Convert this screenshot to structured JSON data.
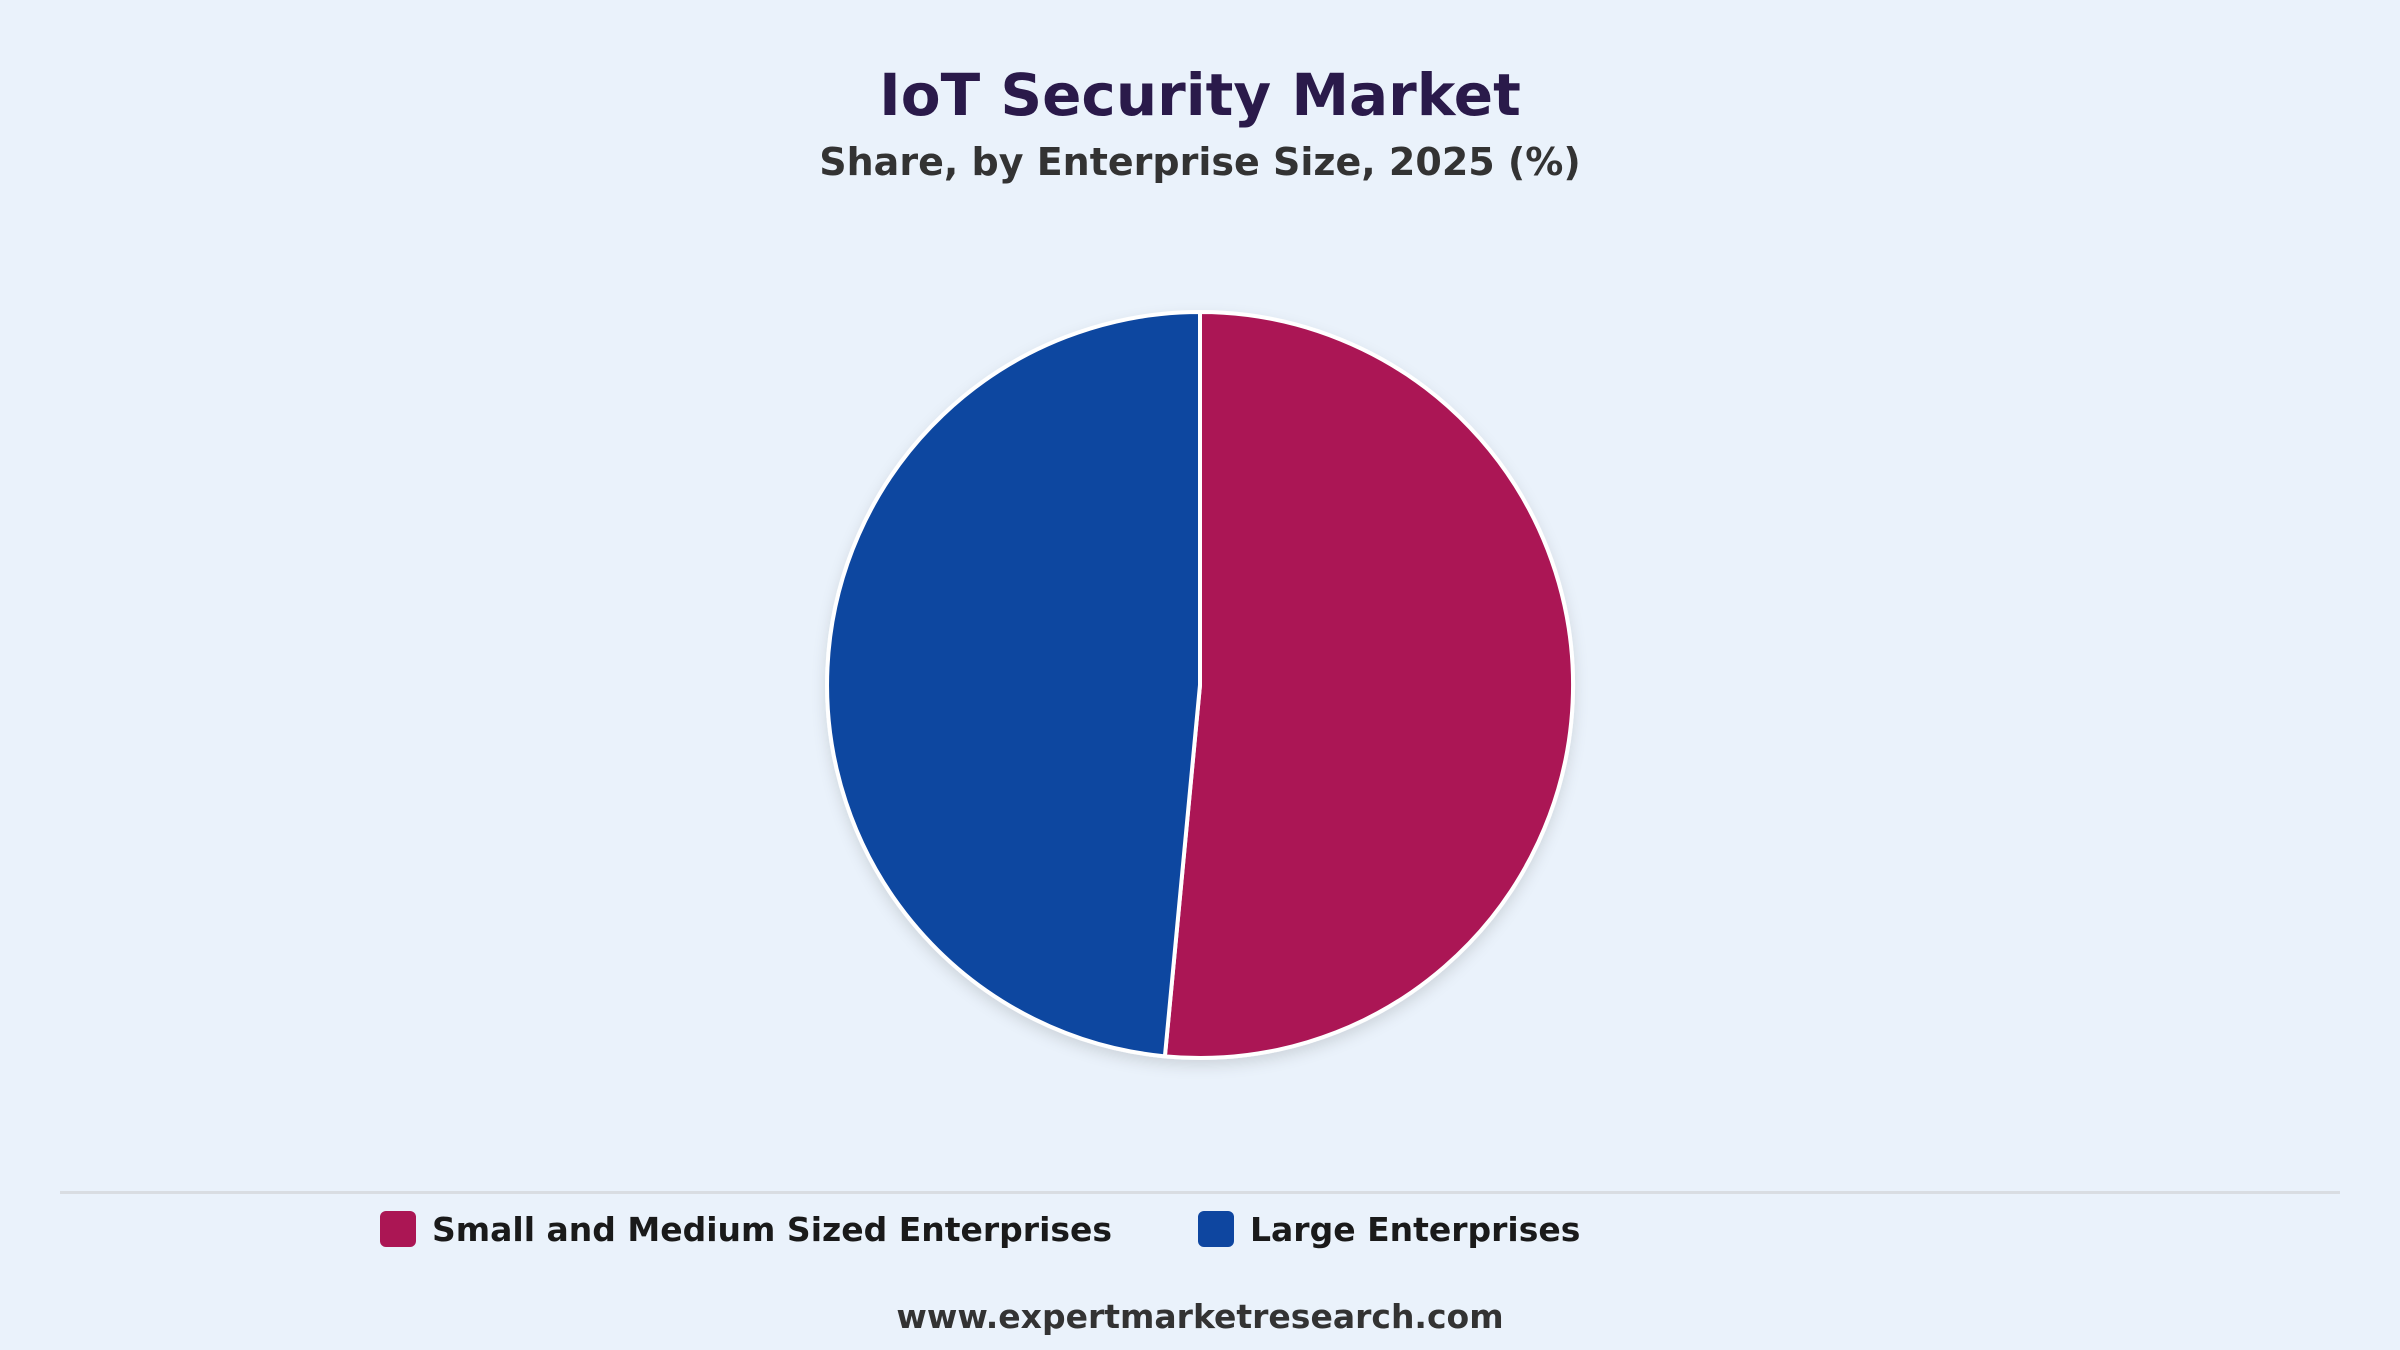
{
  "title": "IoT Security Market",
  "subtitle": "Share, by Enterprise Size, 2025 (%)",
  "source": "www.expertmarketresearch.com",
  "chart_data": {
    "type": "pie",
    "title": "IoT Security Market",
    "subtitle": "Share, by Enterprise Size, 2025 (%)",
    "categories": [
      "Small and Medium Sized Enterprises",
      "Large Enterprises"
    ],
    "values": [
      51.5,
      48.5
    ],
    "colors": [
      "#ab1654",
      "#0e46a0"
    ],
    "start_angle": "12 o'clock",
    "direction": "clockwise",
    "legend_position": "bottom"
  }
}
